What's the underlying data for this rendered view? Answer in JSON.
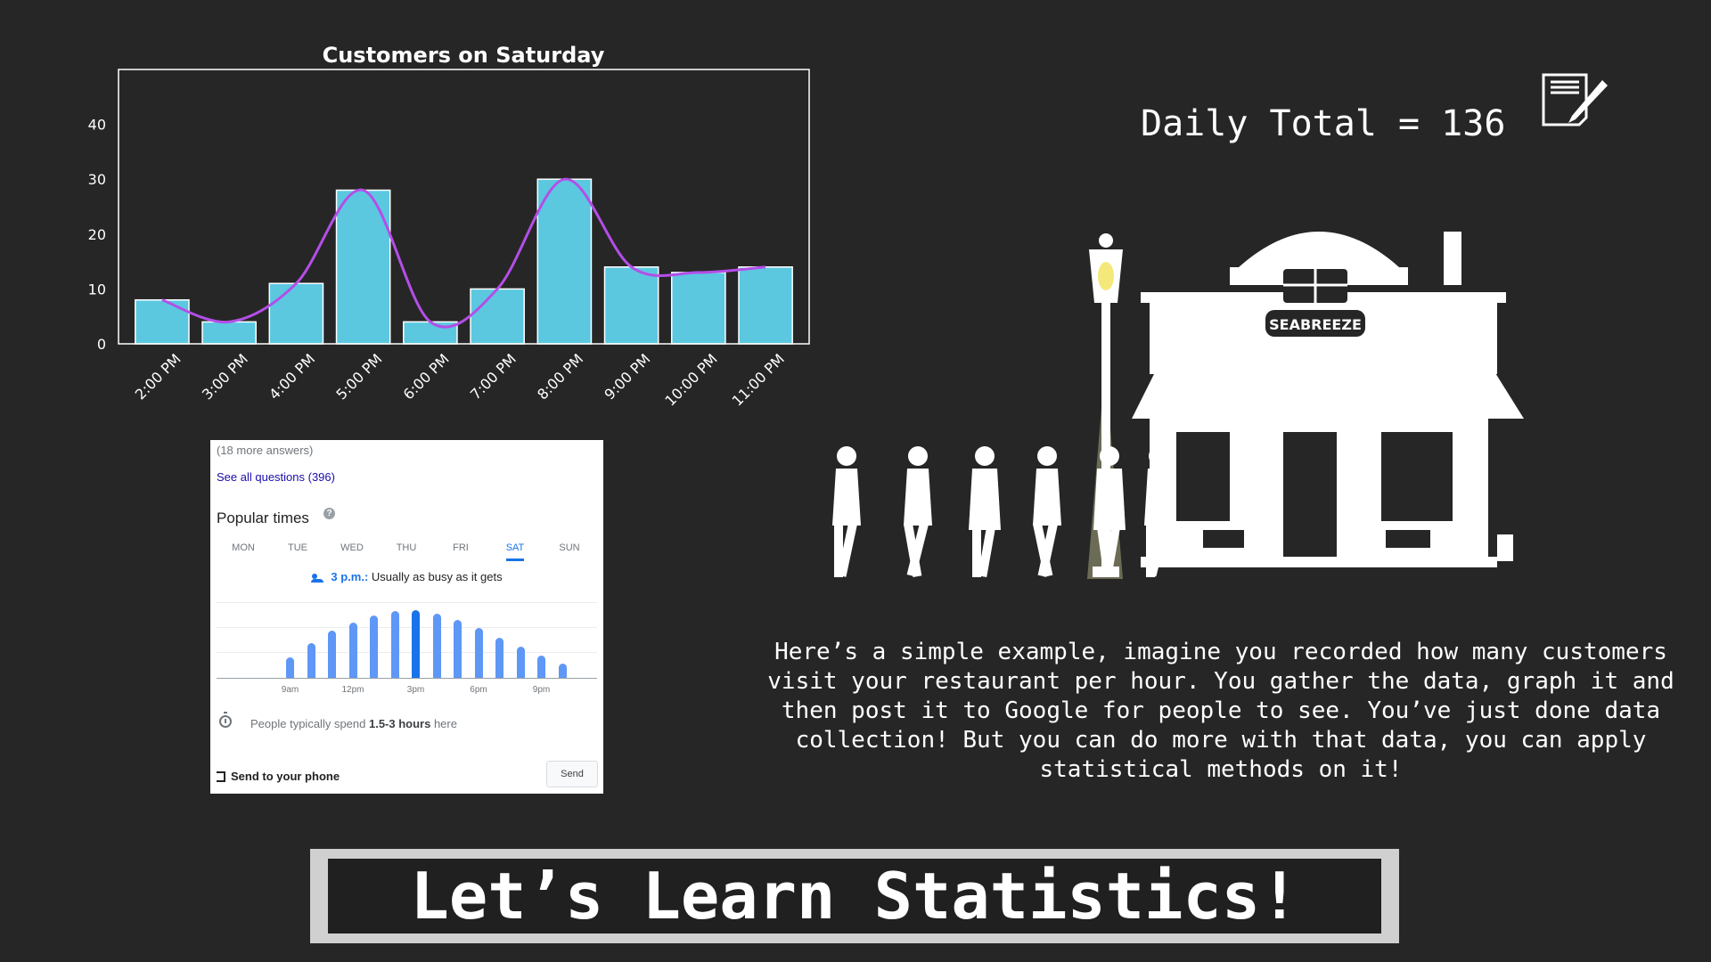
{
  "chart_data": {
    "type": "bar",
    "title": "Customers on Saturday",
    "xlabel": "",
    "ylabel": "",
    "categories": [
      "2:00 PM",
      "3:00 PM",
      "4:00 PM",
      "5:00 PM",
      "6:00 PM",
      "7:00 PM",
      "8:00 PM",
      "9:00 PM",
      "10:00 PM",
      "11:00 PM"
    ],
    "values": [
      8,
      4,
      11,
      28,
      4,
      10,
      30,
      14,
      13,
      14
    ],
    "ylim": [
      0,
      50
    ],
    "yticks": [
      0,
      10,
      20,
      30,
      40
    ],
    "grid": false,
    "smooth_line": true,
    "colors": {
      "bar": "#5bc8e0",
      "bar_edge": "#ffffff",
      "line": "#b44ee8",
      "axes": "#ffffff"
    }
  },
  "google_card": {
    "more_answers": "(18 more answers)",
    "see_all": "See all questions (396)",
    "popular_times": "Popular times",
    "help": "?",
    "days": [
      "MON",
      "TUE",
      "WED",
      "THU",
      "FRI",
      "SAT",
      "SUN"
    ],
    "active_day": "SAT",
    "live_time": "3 p.m.:",
    "live_text": " Usually as busy as it gets",
    "busyness": [
      0.3,
      0.5,
      0.68,
      0.8,
      0.9,
      0.96,
      0.97,
      0.92,
      0.83,
      0.72,
      0.58,
      0.45,
      0.32,
      0.21
    ],
    "current_index": 6,
    "hour_ticks": [
      "9am",
      "12pm",
      "3pm",
      "6pm",
      "9pm"
    ],
    "spend_prefix": "People typically spend ",
    "spend_value": "1.5-3 hours",
    "spend_suffix": " here",
    "send_to_phone": "Send to your phone",
    "send_button": "Send",
    "colors": {
      "bar": "#5e97f6",
      "bar_current": "#1a73e8",
      "link": "#1a0dab"
    }
  },
  "daily_total": "Daily Total = 136",
  "scene": {
    "sign": "SEABREEZE"
  },
  "description": "Here’s a simple example, imagine you recorded how many customers visit your restaurant per hour. You gather the data, graph it and then post it to Google for people to see. You’ve just done data collection! But you can do more with that data, you can apply statistical methods on it!",
  "banner": "Let’s Learn Statistics!",
  "icons": {
    "note": "note-pen-icon",
    "people": "people-icon",
    "timer": "timer-icon",
    "send": "send-to-phone-icon"
  }
}
